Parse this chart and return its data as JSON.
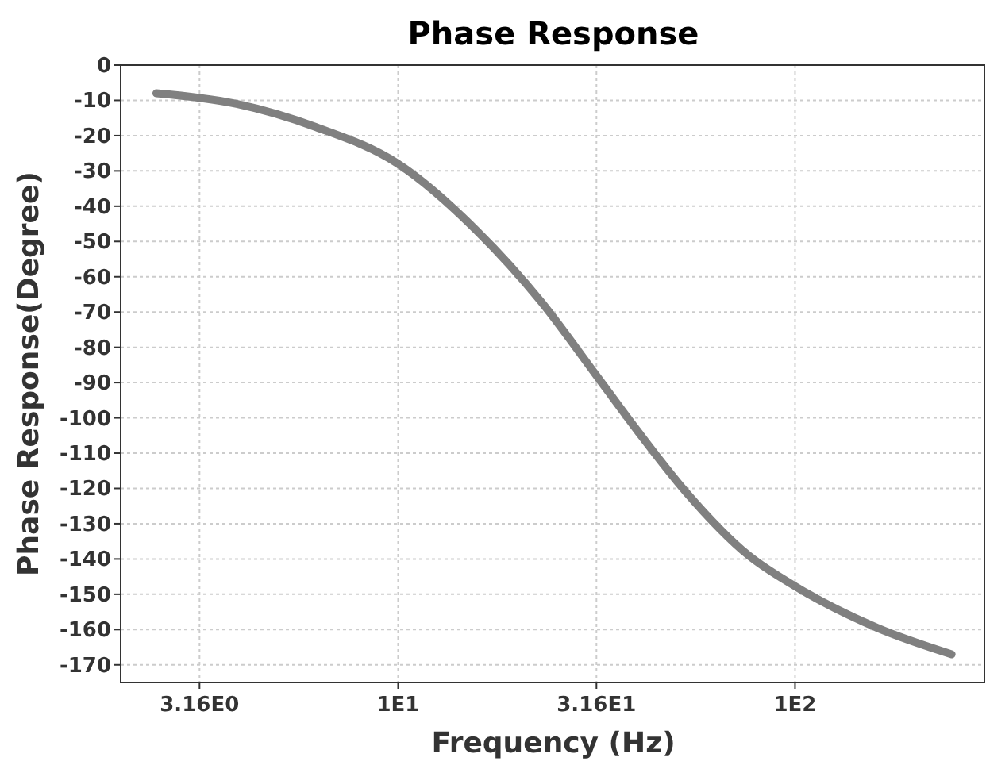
{
  "chart_data": {
    "type": "line",
    "title": "Phase Response",
    "xlabel": "Frequency (Hz)",
    "ylabel": "Phase Response(Degree)",
    "log": "x",
    "xlim": [
      2,
      300
    ],
    "xticks": [
      {
        "value": 3.16,
        "label": "3.16E0"
      },
      {
        "value": 10,
        "label": "1E1"
      },
      {
        "value": 31.6,
        "label": "3.16E1"
      },
      {
        "value": 100,
        "label": "1E2"
      }
    ],
    "ylim": [
      -175,
      0
    ],
    "yticks": [
      0,
      -10,
      -20,
      -30,
      -40,
      -50,
      -60,
      -70,
      -80,
      -90,
      -100,
      -110,
      -120,
      -130,
      -140,
      -150,
      -160,
      -170
    ],
    "grid": true,
    "marker": "none",
    "line_style": "solid",
    "series": [
      {
        "color": "#808080",
        "x": [
          2.46,
          3.92,
          6.22,
          10,
          15.8,
          22.9,
          31.6,
          40.3,
          53.1,
          76.4,
          101,
          161,
          248
        ],
        "values": [
          -8,
          -11,
          -17.6,
          -28,
          -47,
          -67,
          -88,
          -104,
          -121,
          -139,
          -148,
          -159.5,
          -167
        ]
      }
    ]
  }
}
